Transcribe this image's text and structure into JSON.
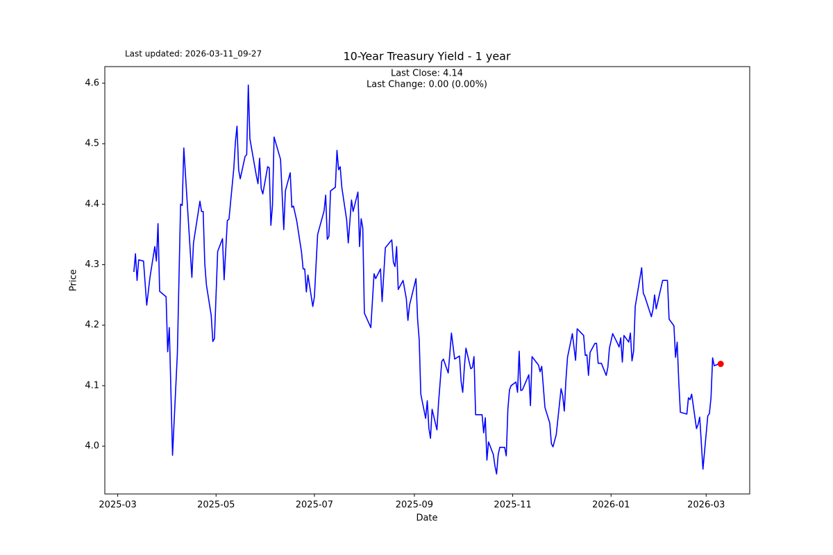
{
  "chart_data": {
    "type": "line",
    "title": "10-Year Treasury Yield - 1 year",
    "updated": "Last updated: 2026-03-11_09-27",
    "annotations": [
      "Last Close: 4.14",
      "Last Change: 0.00 (0.00%)"
    ],
    "x_label": "Date",
    "y_label": "Price",
    "color": "blue",
    "last_point_color": "red",
    "xlim": [
      "2025-02-21",
      "2026-03-28"
    ],
    "ylim": [
      3.921,
      4.6275
    ],
    "xticks": [
      {
        "value": "2025-03-01",
        "label": "2025-03"
      },
      {
        "value": "2025-05-01",
        "label": "2025-05"
      },
      {
        "value": "2025-07-01",
        "label": "2025-07"
      },
      {
        "value": "2025-09-01",
        "label": "2025-09"
      },
      {
        "value": "2025-11-01",
        "label": "2025-11"
      },
      {
        "value": "2026-01-01",
        "label": "2026-01"
      },
      {
        "value": "2026-03-01",
        "label": "2026-03"
      }
    ],
    "yticks": [
      {
        "value": 4,
        "label": "4.0"
      },
      4.1,
      4.2,
      4.3,
      4.4,
      4.5,
      4.6
    ],
    "x": [
      "2025-03-11",
      "2025-03-12",
      "2025-03-13",
      "2025-03-14",
      "2025-03-17",
      "2025-03-19",
      "2025-03-21",
      "2025-03-24",
      "2025-03-25",
      "2025-03-26",
      "2025-03-27",
      "2025-03-31",
      "2025-04-01",
      "2025-04-02",
      "2025-04-04",
      "2025-04-07",
      "2025-04-09",
      "2025-04-10",
      "2025-04-11",
      "2025-04-16",
      "2025-04-17",
      "2025-04-21",
      "2025-04-22",
      "2025-04-23",
      "2025-04-24",
      "2025-04-25",
      "2025-04-28",
      "2025-04-29",
      "2025-04-30",
      "2025-05-02",
      "2025-05-05",
      "2025-05-06",
      "2025-05-08",
      "2025-05-09",
      "2025-05-12",
      "2025-05-13",
      "2025-05-14",
      "2025-05-15",
      "2025-05-16",
      "2025-05-19",
      "2025-05-20",
      "2025-05-21",
      "2025-05-22",
      "2025-05-26",
      "2025-05-27",
      "2025-05-28",
      "2025-05-29",
      "2025-05-30",
      "2025-06-02",
      "2025-06-03",
      "2025-06-04",
      "2025-06-05",
      "2025-06-06",
      "2025-06-10",
      "2025-06-12",
      "2025-06-13",
      "2025-06-16",
      "2025-06-17",
      "2025-06-18",
      "2025-06-20",
      "2025-06-23",
      "2025-06-24",
      "2025-06-25",
      "2025-06-26",
      "2025-06-27",
      "2025-06-30",
      "2025-07-01",
      "2025-07-03",
      "2025-07-07",
      "2025-07-08",
      "2025-07-09",
      "2025-07-10",
      "2025-07-11",
      "2025-07-14",
      "2025-07-15",
      "2025-07-16",
      "2025-07-17",
      "2025-07-18",
      "2025-07-21",
      "2025-07-22",
      "2025-07-24",
      "2025-07-25",
      "2025-07-28",
      "2025-07-29",
      "2025-07-30",
      "2025-07-31",
      "2025-08-01",
      "2025-08-05",
      "2025-08-07",
      "2025-08-08",
      "2025-08-11",
      "2025-08-12",
      "2025-08-14",
      "2025-08-18",
      "2025-08-19",
      "2025-08-20",
      "2025-08-21",
      "2025-08-22",
      "2025-08-25",
      "2025-08-27",
      "2025-08-28",
      "2025-08-29",
      "2025-09-02",
      "2025-09-03",
      "2025-09-04",
      "2025-09-05",
      "2025-09-08",
      "2025-09-09",
      "2025-09-10",
      "2025-09-11",
      "2025-09-12",
      "2025-09-15",
      "2025-09-16",
      "2025-09-18",
      "2025-09-19",
      "2025-09-22",
      "2025-09-23",
      "2025-09-24",
      "2025-09-26",
      "2025-09-29",
      "2025-09-30",
      "2025-10-01",
      "2025-10-02",
      "2025-10-03",
      "2025-10-06",
      "2025-10-07",
      "2025-10-08",
      "2025-10-09",
      "2025-10-13",
      "2025-10-14",
      "2025-10-15",
      "2025-10-16",
      "2025-10-17",
      "2025-10-20",
      "2025-10-21",
      "2025-10-22",
      "2025-10-23",
      "2025-10-24",
      "2025-10-27",
      "2025-10-28",
      "2025-10-29",
      "2025-10-30",
      "2025-10-31",
      "2025-11-03",
      "2025-11-04",
      "2025-11-05",
      "2025-11-06",
      "2025-11-07",
      "2025-11-11",
      "2025-11-12",
      "2025-11-13",
      "2025-11-17",
      "2025-11-18",
      "2025-11-19",
      "2025-11-21",
      "2025-11-24",
      "2025-11-25",
      "2025-11-26",
      "2025-11-28",
      "2025-12-01",
      "2025-12-02",
      "2025-12-03",
      "2025-12-04",
      "2025-12-05",
      "2025-12-08",
      "2025-12-10",
      "2025-12-11",
      "2025-12-15",
      "2025-12-16",
      "2025-12-17",
      "2025-12-18",
      "2025-12-19",
      "2025-12-22",
      "2025-12-23",
      "2025-12-24",
      "2025-12-26",
      "2025-12-29",
      "2025-12-30",
      "2025-12-31",
      "2026-01-02",
      "2026-01-05",
      "2026-01-06",
      "2026-01-07",
      "2026-01-08",
      "2026-01-09",
      "2026-01-12",
      "2026-01-13",
      "2026-01-14",
      "2026-01-15",
      "2026-01-16",
      "2026-01-20",
      "2026-01-21",
      "2026-01-22",
      "2026-01-26",
      "2026-01-27",
      "2026-01-28",
      "2026-01-29",
      "2026-02-02",
      "2026-02-03",
      "2026-02-05",
      "2026-02-06",
      "2026-02-09",
      "2026-02-10",
      "2026-02-11",
      "2026-02-12",
      "2026-02-13",
      "2026-02-17",
      "2026-02-18",
      "2026-02-19",
      "2026-02-20",
      "2026-02-23",
      "2026-02-24",
      "2026-02-25",
      "2026-02-27",
      "2026-03-02",
      "2026-03-03",
      "2026-03-04",
      "2026-03-05",
      "2026-03-06",
      "2026-03-09",
      "2026-03-10"
    ],
    "values": [
      4.288,
      4.318,
      4.274,
      4.308,
      4.306,
      4.233,
      4.279,
      4.33,
      4.306,
      4.368,
      4.256,
      4.247,
      4.156,
      4.196,
      3.985,
      4.153,
      4.4,
      4.398,
      4.493,
      4.279,
      4.336,
      4.405,
      4.388,
      4.388,
      4.302,
      4.267,
      4.216,
      4.173,
      4.178,
      4.322,
      4.343,
      4.275,
      4.373,
      4.375,
      4.459,
      4.503,
      4.529,
      4.457,
      4.442,
      4.479,
      4.482,
      4.597,
      4.508,
      4.447,
      4.434,
      4.476,
      4.426,
      4.417,
      4.462,
      4.46,
      4.365,
      4.398,
      4.511,
      4.474,
      4.358,
      4.422,
      4.452,
      4.395,
      4.397,
      4.373,
      4.321,
      4.293,
      4.293,
      4.255,
      4.283,
      4.231,
      4.247,
      4.35,
      4.389,
      4.415,
      4.342,
      4.347,
      4.422,
      4.428,
      4.489,
      4.457,
      4.462,
      4.428,
      4.374,
      4.336,
      4.407,
      4.388,
      4.42,
      4.33,
      4.376,
      4.361,
      4.22,
      4.196,
      4.285,
      4.277,
      4.293,
      4.239,
      4.328,
      4.341,
      4.304,
      4.297,
      4.33,
      4.259,
      4.274,
      4.244,
      4.208,
      4.233,
      4.277,
      4.21,
      4.176,
      4.086,
      4.046,
      4.075,
      4.03,
      4.013,
      4.061,
      4.027,
      4.072,
      4.14,
      4.144,
      4.121,
      4.153,
      4.187,
      4.144,
      4.149,
      4.107,
      4.089,
      4.13,
      4.162,
      4.128,
      4.13,
      4.148,
      4.052,
      4.052,
      4.022,
      4.047,
      3.977,
      4.007,
      3.986,
      3.967,
      3.954,
      3.986,
      3.998,
      3.998,
      3.984,
      4.061,
      4.093,
      4.1,
      4.106,
      4.089,
      4.157,
      4.092,
      4.093,
      4.118,
      4.067,
      4.148,
      4.134,
      4.123,
      4.132,
      4.064,
      4.038,
      4.004,
      3.999,
      4.019,
      4.095,
      4.084,
      4.058,
      4.109,
      4.147,
      4.186,
      4.142,
      4.194,
      4.183,
      4.15,
      4.151,
      4.117,
      4.155,
      4.17,
      4.17,
      4.137,
      4.137,
      4.117,
      4.13,
      4.162,
      4.186,
      4.17,
      4.164,
      4.179,
      4.139,
      4.183,
      4.172,
      4.187,
      4.141,
      4.157,
      4.231,
      4.295,
      4.253,
      4.247,
      4.214,
      4.226,
      4.25,
      4.227,
      4.274,
      4.274,
      4.274,
      4.21,
      4.199,
      4.147,
      4.172,
      4.107,
      4.056,
      4.053,
      4.08,
      4.077,
      4.086,
      4.029,
      4.036,
      4.048,
      3.962,
      4.05,
      4.054,
      4.08,
      4.146,
      4.133,
      4.136,
      4.136
    ]
  }
}
